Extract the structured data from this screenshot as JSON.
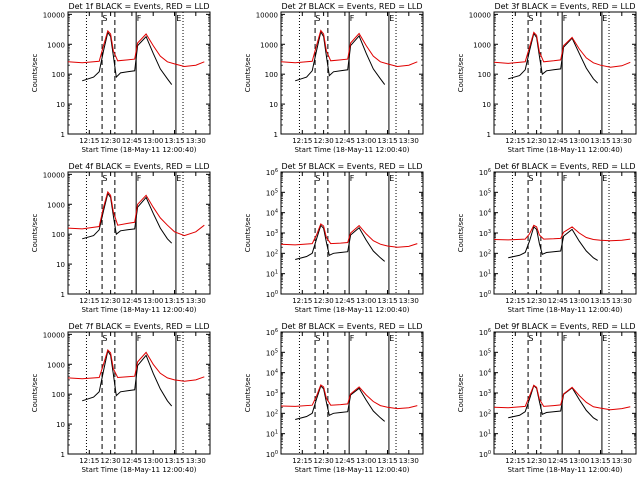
{
  "colors": {
    "events": "#000000",
    "lld": "#e00000",
    "frame": "#000000"
  },
  "x_tick_labels": [
    "12:15",
    "12:30",
    "12:45",
    "13:00",
    "13:15",
    "13:30"
  ],
  "x_axis_label": "Start Time (18-May-11 12:00:40)",
  "y_axis_label": "Counts/sec",
  "region_labels": [
    "S",
    "F",
    "E"
  ],
  "chart_data": [
    {
      "type": "line",
      "title": "Det 1f BLACK = Events, RED = LLD",
      "y_tick_style": "plain",
      "ylim": [
        1,
        12000
      ],
      "yscale": "log",
      "x_labels": [
        "12:15",
        "12:30",
        "12:45",
        "13:00",
        "13:15",
        "13:30"
      ],
      "ytick_labels": [
        "1",
        "10",
        "100",
        "1000",
        "10000"
      ],
      "xlabel": "Start Time (18-May-11 12:00:40)",
      "ylabel": "Counts/sec",
      "series": [
        {
          "name": "BLACK = Events",
          "x": [
            "12:10",
            "12:18",
            "12:22",
            "12:25",
            "12:28",
            "12:30",
            "12:32",
            "12:34",
            "12:37",
            "12:42",
            "12:47",
            "12:49",
            "12:55",
            "13:00",
            "13:05",
            "13:10",
            "13:13"
          ],
          "values": [
            60,
            80,
            120,
            600,
            2500,
            1800,
            400,
            80,
            110,
            120,
            130,
            900,
            1800,
            500,
            150,
            70,
            45
          ]
        },
        {
          "name": "RED = LLD",
          "x": [
            "12:00",
            "12:10",
            "12:22",
            "12:25",
            "12:28",
            "12:30",
            "12:32",
            "12:35",
            "12:42",
            "12:47",
            "12:49",
            "12:55",
            "13:00",
            "13:05",
            "13:10",
            "13:15",
            "13:22",
            "13:30",
            "13:36"
          ],
          "values": [
            260,
            240,
            270,
            900,
            2800,
            2200,
            600,
            280,
            300,
            320,
            1100,
            2200,
            900,
            400,
            260,
            220,
            180,
            200,
            260
          ]
        }
      ]
    },
    {
      "type": "line",
      "title": "Det 2f BLACK = Events, RED = LLD",
      "y_tick_style": "plain",
      "ylim": [
        1,
        12000
      ],
      "yscale": "log",
      "x_labels": [
        "12:15",
        "12:30",
        "12:45",
        "13:00",
        "13:15",
        "13:30"
      ],
      "ytick_labels": [
        "1",
        "10",
        "100",
        "1000",
        "10000"
      ],
      "xlabel": "Start Time (18-May-11 12:00:40)",
      "ylabel": "Counts/sec",
      "series": [
        {
          "name": "BLACK = Events",
          "x": [
            "12:10",
            "12:18",
            "12:22",
            "12:25",
            "12:28",
            "12:30",
            "12:32",
            "12:34",
            "12:37",
            "12:42",
            "12:47",
            "12:49",
            "12:55",
            "13:00",
            "13:05",
            "13:10",
            "13:13"
          ],
          "values": [
            60,
            80,
            130,
            600,
            2600,
            1800,
            400,
            90,
            120,
            130,
            140,
            900,
            1900,
            500,
            150,
            70,
            45
          ]
        },
        {
          "name": "RED = LLD",
          "x": [
            "12:00",
            "12:10",
            "12:22",
            "12:25",
            "12:28",
            "12:30",
            "12:32",
            "12:35",
            "12:42",
            "12:47",
            "12:49",
            "12:55",
            "13:00",
            "13:05",
            "13:10",
            "13:15",
            "13:22",
            "13:30",
            "13:36"
          ],
          "values": [
            260,
            240,
            270,
            900,
            2900,
            2200,
            600,
            280,
            300,
            320,
            1100,
            2300,
            900,
            400,
            260,
            220,
            180,
            200,
            260
          ]
        }
      ]
    },
    {
      "type": "line",
      "title": "Det 3f BLACK = Events, RED = LLD",
      "y_tick_style": "plain",
      "ylim": [
        1,
        12000
      ],
      "yscale": "log",
      "x_labels": [
        "12:15",
        "12:30",
        "12:45",
        "13:00",
        "13:15",
        "13:30"
      ],
      "ytick_labels": [
        "1",
        "10",
        "100",
        "1000",
        "10000"
      ],
      "xlabel": "Start Time (18-May-11 12:00:40)",
      "ylabel": "Counts/sec",
      "series": [
        {
          "name": "BLACK = Events",
          "x": [
            "12:10",
            "12:18",
            "12:22",
            "12:25",
            "12:28",
            "12:30",
            "12:32",
            "12:34",
            "12:37",
            "12:42",
            "12:47",
            "12:49",
            "12:55",
            "13:00",
            "13:05",
            "13:10",
            "13:13"
          ],
          "values": [
            70,
            90,
            140,
            600,
            2300,
            1700,
            400,
            100,
            130,
            140,
            150,
            800,
            1600,
            500,
            160,
            70,
            50
          ]
        },
        {
          "name": "RED = LLD",
          "x": [
            "12:00",
            "12:10",
            "12:22",
            "12:25",
            "12:28",
            "12:30",
            "12:32",
            "12:35",
            "12:42",
            "12:47",
            "12:49",
            "12:55",
            "13:00",
            "13:05",
            "13:10",
            "13:15",
            "13:22",
            "13:30",
            "13:36"
          ],
          "values": [
            250,
            230,
            260,
            800,
            2500,
            2000,
            550,
            260,
            280,
            300,
            900,
            1700,
            700,
            350,
            240,
            200,
            170,
            190,
            250
          ]
        }
      ]
    },
    {
      "type": "line",
      "title": "Det 4f BLACK = Events, RED = LLD",
      "y_tick_style": "plain",
      "ylim": [
        1,
        12000
      ],
      "yscale": "log",
      "x_labels": [
        "12:15",
        "12:30",
        "12:45",
        "13:00",
        "13:15",
        "13:30"
      ],
      "ytick_labels": [
        "1",
        "10",
        "100",
        "1000",
        "10000"
      ],
      "xlabel": "Start Time (18-May-11 12:00:40)",
      "ylabel": "Counts/sec",
      "series": [
        {
          "name": "BLACK = Events",
          "x": [
            "12:10",
            "12:18",
            "12:22",
            "12:25",
            "12:28",
            "12:30",
            "12:32",
            "12:34",
            "12:37",
            "12:42",
            "12:47",
            "12:49",
            "12:55",
            "13:00",
            "13:05",
            "13:10",
            "13:13"
          ],
          "values": [
            70,
            90,
            140,
            600,
            2300,
            1700,
            400,
            100,
            130,
            140,
            150,
            800,
            1700,
            500,
            160,
            70,
            50
          ]
        },
        {
          "name": "RED = LLD",
          "x": [
            "12:00",
            "12:10",
            "12:22",
            "12:25",
            "12:28",
            "12:30",
            "12:32",
            "12:35",
            "12:42",
            "12:47",
            "12:49",
            "12:55",
            "13:00",
            "13:05",
            "13:10",
            "13:15",
            "13:22",
            "13:30",
            "13:36"
          ],
          "values": [
            160,
            150,
            180,
            800,
            2600,
            2000,
            550,
            200,
            230,
            250,
            1000,
            2000,
            800,
            350,
            200,
            120,
            90,
            120,
            200
          ]
        }
      ]
    },
    {
      "type": "line",
      "title": "Det 5f BLACK = Events, RED = LLD",
      "y_tick_style": "power",
      "ylim": [
        1,
        1000000
      ],
      "yscale": "log",
      "x_labels": [
        "12:15",
        "12:30",
        "12:45",
        "13:00",
        "13:15",
        "13:30"
      ],
      "ytick_labels": [
        "10^0",
        "10^1",
        "10^2",
        "10^3",
        "10^4",
        "10^5",
        "10^6"
      ],
      "xlabel": "Start Time (18-May-11 12:00:40)",
      "ylabel": "Counts/sec",
      "series": [
        {
          "name": "BLACK = Events",
          "x": [
            "12:10",
            "12:18",
            "12:22",
            "12:25",
            "12:28",
            "12:30",
            "12:32",
            "12:34",
            "12:37",
            "12:42",
            "12:47",
            "12:49",
            "12:55",
            "13:00",
            "13:05",
            "13:10",
            "13:13"
          ],
          "values": [
            50,
            70,
            100,
            500,
            2400,
            1700,
            350,
            80,
            100,
            110,
            120,
            800,
            1800,
            450,
            130,
            60,
            40
          ]
        },
        {
          "name": "RED = LLD",
          "x": [
            "12:00",
            "12:10",
            "12:22",
            "12:25",
            "12:28",
            "12:30",
            "12:32",
            "12:35",
            "12:42",
            "12:47",
            "12:49",
            "12:55",
            "13:00",
            "13:05",
            "13:10",
            "13:15",
            "13:22",
            "13:30",
            "13:36"
          ],
          "values": [
            280,
            260,
            300,
            800,
            2800,
            2200,
            600,
            300,
            320,
            340,
            1000,
            2300,
            900,
            420,
            280,
            230,
            200,
            220,
            300
          ]
        }
      ]
    },
    {
      "type": "line",
      "title": "Det 6f BLACK = Events, RED = LLD",
      "y_tick_style": "power",
      "ylim": [
        1,
        1000000
      ],
      "yscale": "log",
      "x_labels": [
        "12:15",
        "12:30",
        "12:45",
        "13:00",
        "13:15",
        "13:30"
      ],
      "ytick_labels": [
        "10^0",
        "10^1",
        "10^2",
        "10^3",
        "10^4",
        "10^5",
        "10^6"
      ],
      "xlabel": "Start Time (18-May-11 12:00:40)",
      "ylabel": "Counts/sec",
      "series": [
        {
          "name": "BLACK = Events",
          "x": [
            "12:10",
            "12:18",
            "12:22",
            "12:25",
            "12:28",
            "12:30",
            "12:32",
            "12:34",
            "12:37",
            "12:42",
            "12:47",
            "12:49",
            "12:55",
            "13:00",
            "13:05",
            "13:10",
            "13:13"
          ],
          "values": [
            60,
            80,
            110,
            400,
            2000,
            1500,
            300,
            90,
            110,
            120,
            130,
            700,
            1500,
            400,
            130,
            60,
            45
          ]
        },
        {
          "name": "RED = LLD",
          "x": [
            "12:00",
            "12:10",
            "12:22",
            "12:25",
            "12:28",
            "12:30",
            "12:32",
            "12:35",
            "12:42",
            "12:47",
            "12:49",
            "12:55",
            "13:00",
            "13:05",
            "13:10",
            "13:15",
            "13:22",
            "13:30",
            "13:36"
          ],
          "values": [
            480,
            460,
            500,
            900,
            2400,
            2000,
            800,
            500,
            520,
            540,
            1100,
            2000,
            1000,
            600,
            480,
            440,
            420,
            440,
            500
          ]
        }
      ]
    },
    {
      "type": "line",
      "title": "Det 7f BLACK = Events, RED = LLD",
      "y_tick_style": "plain",
      "ylim": [
        1,
        12000
      ],
      "yscale": "log",
      "x_labels": [
        "12:15",
        "12:30",
        "12:45",
        "13:00",
        "13:15",
        "13:30"
      ],
      "ytick_labels": [
        "1",
        "10",
        "100",
        "1000",
        "10000"
      ],
      "xlabel": "Start Time (18-May-11 12:00:40)",
      "ylabel": "Counts/sec",
      "series": [
        {
          "name": "BLACK = Events",
          "x": [
            "12:10",
            "12:18",
            "12:22",
            "12:25",
            "12:28",
            "12:30",
            "12:32",
            "12:34",
            "12:37",
            "12:42",
            "12:47",
            "12:49",
            "12:55",
            "13:00",
            "13:05",
            "13:10",
            "13:13"
          ],
          "values": [
            60,
            80,
            120,
            600,
            2800,
            2000,
            450,
            90,
            120,
            130,
            140,
            900,
            2000,
            500,
            150,
            60,
            40
          ]
        },
        {
          "name": "RED = LLD",
          "x": [
            "12:00",
            "12:10",
            "12:22",
            "12:25",
            "12:28",
            "12:30",
            "12:32",
            "12:35",
            "12:42",
            "12:47",
            "12:49",
            "12:55",
            "13:00",
            "13:05",
            "13:10",
            "13:15",
            "13:22",
            "13:30",
            "13:36"
          ],
          "values": [
            350,
            330,
            360,
            1000,
            3000,
            2400,
            700,
            360,
            380,
            400,
            1200,
            2500,
            1000,
            500,
            350,
            300,
            270,
            300,
            380
          ]
        }
      ]
    },
    {
      "type": "line",
      "title": "Det 8f BLACK = Events, RED = LLD",
      "y_tick_style": "power",
      "ylim": [
        1,
        1000000
      ],
      "yscale": "log",
      "x_labels": [
        "12:15",
        "12:30",
        "12:45",
        "13:00",
        "13:15",
        "13:30"
      ],
      "ytick_labels": [
        "10^0",
        "10^1",
        "10^2",
        "10^3",
        "10^4",
        "10^5",
        "10^6"
      ],
      "xlabel": "Start Time (18-May-11 12:00:40)",
      "ylabel": "Counts/sec",
      "series": [
        {
          "name": "BLACK = Events",
          "x": [
            "12:10",
            "12:18",
            "12:22",
            "12:25",
            "12:28",
            "12:30",
            "12:32",
            "12:34",
            "12:37",
            "12:42",
            "12:47",
            "12:49",
            "12:55",
            "13:00",
            "13:05",
            "13:10",
            "13:13"
          ],
          "values": [
            50,
            70,
            100,
            500,
            2200,
            1600,
            350,
            80,
            100,
            110,
            120,
            800,
            1700,
            450,
            130,
            60,
            40
          ]
        },
        {
          "name": "RED = LLD",
          "x": [
            "12:00",
            "12:10",
            "12:22",
            "12:25",
            "12:28",
            "12:30",
            "12:32",
            "12:35",
            "12:42",
            "12:47",
            "12:49",
            "12:55",
            "13:00",
            "13:05",
            "13:10",
            "13:15",
            "13:22",
            "13:30",
            "13:36"
          ],
          "values": [
            230,
            220,
            250,
            700,
            2500,
            2000,
            550,
            250,
            270,
            290,
            900,
            2000,
            800,
            380,
            240,
            200,
            170,
            190,
            240
          ]
        }
      ]
    },
    {
      "type": "line",
      "title": "Det 9f BLACK = Events, RED = LLD",
      "y_tick_style": "power",
      "ylim": [
        1,
        1000000
      ],
      "yscale": "log",
      "x_labels": [
        "12:15",
        "12:30",
        "12:45",
        "13:00",
        "13:15",
        "13:30"
      ],
      "ytick_labels": [
        "10^0",
        "10^1",
        "10^2",
        "10^3",
        "10^4",
        "10^5",
        "10^6"
      ],
      "xlabel": "Start Time (18-May-11 12:00:40)",
      "ylabel": "Counts/sec",
      "series": [
        {
          "name": "BLACK = Events",
          "x": [
            "12:10",
            "12:18",
            "12:22",
            "12:25",
            "12:28",
            "12:30",
            "12:32",
            "12:34",
            "12:37",
            "12:42",
            "12:47",
            "12:49",
            "12:55",
            "13:00",
            "13:05",
            "13:10",
            "13:13"
          ],
          "values": [
            60,
            80,
            120,
            500,
            2300,
            1700,
            380,
            90,
            110,
            120,
            130,
            850,
            1800,
            480,
            140,
            60,
            45
          ]
        },
        {
          "name": "RED = LLD",
          "x": [
            "12:00",
            "12:10",
            "12:22",
            "12:25",
            "12:28",
            "12:30",
            "12:32",
            "12:35",
            "12:42",
            "12:47",
            "12:49",
            "12:55",
            "13:00",
            "13:05",
            "13:10",
            "13:15",
            "13:22",
            "13:30",
            "13:36"
          ],
          "values": [
            200,
            190,
            220,
            700,
            2400,
            1900,
            500,
            220,
            240,
            260,
            900,
            1900,
            750,
            350,
            210,
            180,
            150,
            170,
            210
          ]
        }
      ]
    }
  ]
}
